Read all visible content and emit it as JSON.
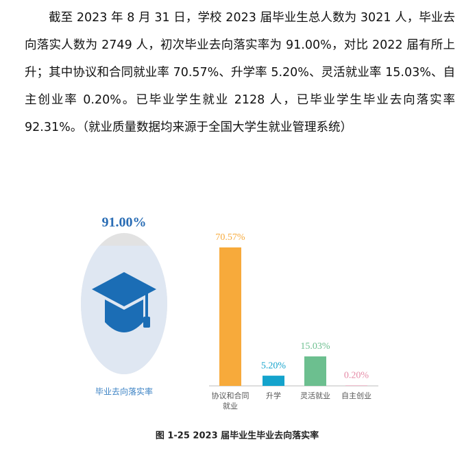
{
  "document": {
    "paragraph": "截至 2023 年 8 月 31 日，学校 2023 届毕业生总人数为 3021 人，毕业去向落实人数为 2749 人，初次毕业去向落实率为 91.00%，对比 2022 届有所上升；其中协议和合同就业率 70.57%、升学率 5.20%、灵活就业率 15.03%、自主创业率 0.20%。已毕业学生就业 2128 人，已毕业学生毕业去向落实率 92.31%。（就业质量数据均来源于全国大学生就业管理系统）",
    "caption": "图 1-25 2023 届毕业生毕业去向落实率"
  },
  "chart_data": [
    {
      "type": "gauge",
      "categories": [
        "毕业去向落实率"
      ],
      "values": [
        91.0
      ],
      "value_labels": [
        "91.00%"
      ],
      "color": "#dfe7f2"
    },
    {
      "type": "bar",
      "categories": [
        "协议和合同就业",
        "升学",
        "灵活就业",
        "自主创业"
      ],
      "values": [
        70.57,
        5.2,
        15.03,
        0.2
      ],
      "value_labels": [
        "70.57%",
        "5.20%",
        "15.03%",
        "0.20%"
      ],
      "colors": [
        "#f7aa3b",
        "#14a3cc",
        "#6cbf8f",
        "#e58aa6"
      ]
    }
  ]
}
